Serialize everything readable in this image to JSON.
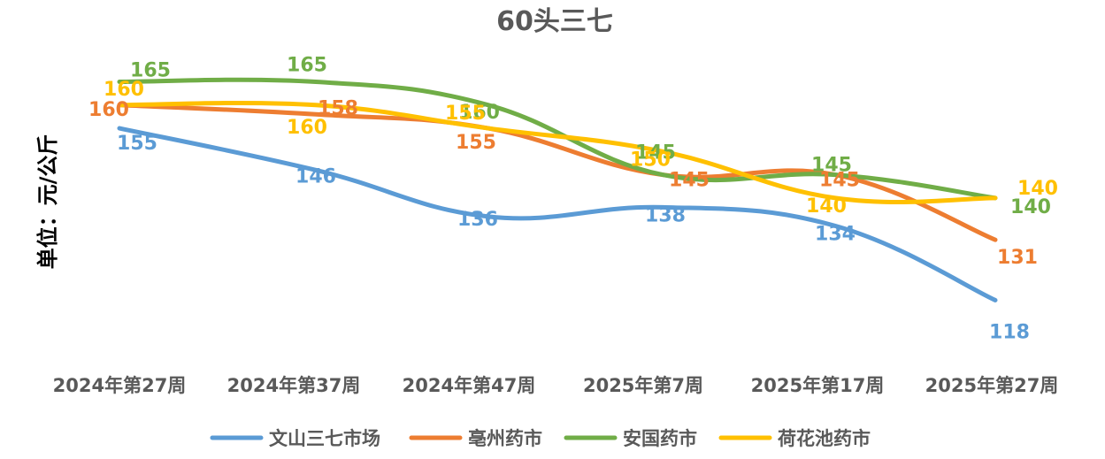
{
  "chart_data": {
    "type": "line",
    "title": "60头三七",
    "ylabel": "单位：元/公斤",
    "xlabel": "",
    "categories": [
      "2024年第27周",
      "2024年第37周",
      "2024年第47周",
      "2025年第7周",
      "2025年第17周",
      "2025年第27周"
    ],
    "ylim": [
      100,
      175
    ],
    "grid": false,
    "legend_position": "bottom",
    "smooth": true,
    "series": [
      {
        "name": "文山三七市场",
        "color": "#5B9BD5",
        "values": [
          155,
          146,
          136,
          138,
          134,
          118
        ]
      },
      {
        "name": "亳州药市",
        "color": "#ED7D31",
        "values": [
          160,
          158,
          155,
          145,
          145,
          131
        ]
      },
      {
        "name": "安国药市",
        "color": "#70AD47",
        "values": [
          165,
          165,
          160,
          145,
          145,
          140
        ]
      },
      {
        "name": "荷花池药市",
        "color": "#FFC000",
        "values": [
          160,
          160,
          155,
          150,
          140,
          140
        ]
      }
    ]
  }
}
